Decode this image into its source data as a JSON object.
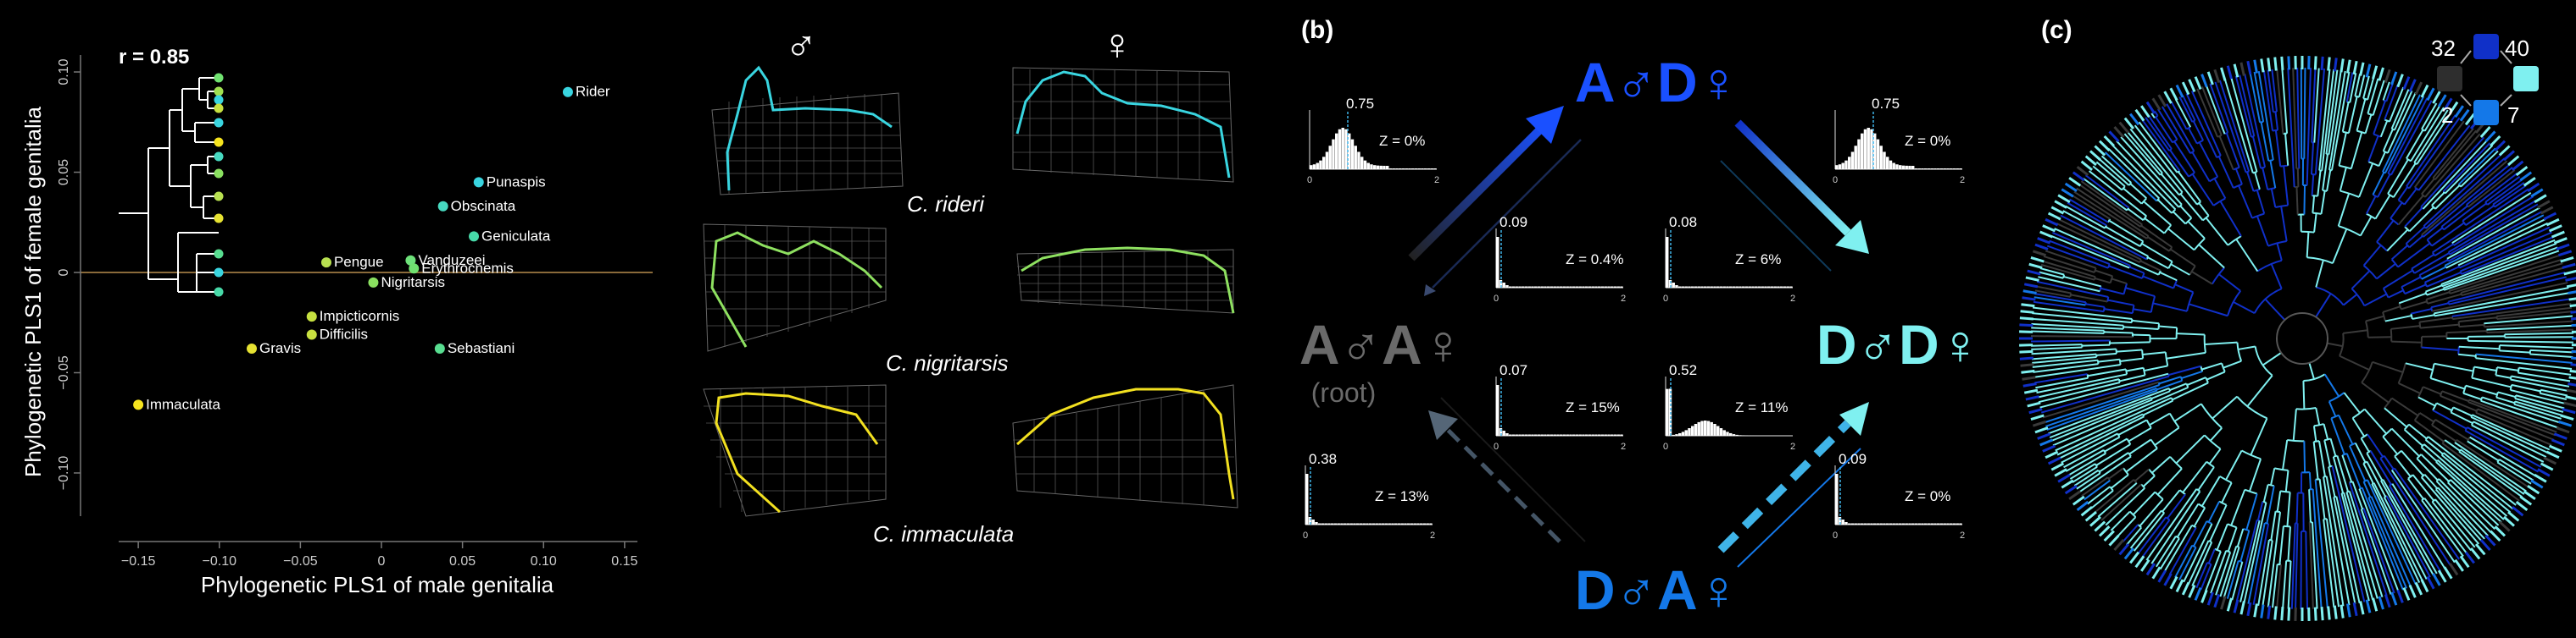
{
  "panel_a": {
    "r_label": "r = 0.85",
    "xlabel": "Phylogenetic PLS1 of male genitalia",
    "ylabel": "Phylogenetic PLS1 of female genitalia",
    "x_ticks": [
      "−0.15",
      "−0.10",
      "−0.05",
      "0",
      "0.05",
      "0.10",
      "0.15"
    ],
    "y_ticks": [
      "0.10",
      "0.05",
      "0",
      "−0.05",
      "−0.10"
    ],
    "male_symbol": "♂",
    "female_symbol": "♀",
    "species_labels": [
      "C. rideri",
      "C. nigritarsis",
      "C. immaculata"
    ]
  },
  "chart_data": {
    "type": "scatter",
    "xlabel": "Phylogenetic PLS1 of male genitalia",
    "ylabel": "Phylogenetic PLS1 of female genitalia",
    "xlim": [
      -0.17,
      0.17
    ],
    "ylim": [
      -0.11,
      0.11
    ],
    "annotation": "r = 0.85",
    "points": [
      {
        "label": "Rider",
        "x": 0.115,
        "y": 0.09,
        "color": "#39d5e0"
      },
      {
        "label": "Punaspis",
        "x": 0.06,
        "y": 0.045,
        "color": "#39d5e0"
      },
      {
        "label": "Obscinata",
        "x": 0.038,
        "y": 0.033,
        "color": "#47d9c0"
      },
      {
        "label": "Geniculata",
        "x": 0.057,
        "y": 0.018,
        "color": "#47d9a8"
      },
      {
        "label": "Vanduzeei",
        "x": 0.018,
        "y": 0.006,
        "color": "#6ee27a"
      },
      {
        "label": "Erythrocnemis",
        "x": 0.02,
        "y": 0.002,
        "color": "#70e270"
      },
      {
        "label": "Pengue",
        "x": -0.034,
        "y": 0.005,
        "color": "#b8e050"
      },
      {
        "label": "Nigritarsis",
        "x": -0.005,
        "y": -0.005,
        "color": "#8ae060"
      },
      {
        "label": "Impicticornis",
        "x": -0.043,
        "y": -0.022,
        "color": "#c6e040"
      },
      {
        "label": "Difficilis",
        "x": -0.043,
        "y": -0.031,
        "color": "#c8e040"
      },
      {
        "label": "Gravis",
        "x": -0.08,
        "y": -0.038,
        "color": "#e6e232"
      },
      {
        "label": "Sebastiani",
        "x": 0.036,
        "y": -0.038,
        "color": "#58dd90"
      },
      {
        "label": "Immaculata",
        "x": -0.15,
        "y": -0.066,
        "color": "#f6e41e"
      }
    ]
  },
  "panel_b": {
    "label": "(b)",
    "state_AA": "A♂A♀",
    "state_AA_sub": "(root)",
    "state_AD": "A♂D♀",
    "state_DD": "D♂D♀",
    "state_DA": "D♂A♀",
    "histograms": [
      {
        "peak_label": "0.75",
        "z_label": "Z = 0%"
      },
      {
        "peak_label": "0.75",
        "z_label": "Z = 0%"
      },
      {
        "peak_label": "0.09",
        "z_label": "Z = 0.4%"
      },
      {
        "peak_label": "0.08",
        "z_label": "Z = 6%"
      },
      {
        "peak_label": "0.07",
        "z_label": "Z = 15%"
      },
      {
        "peak_label": "0.52",
        "z_label": "Z = 11%"
      },
      {
        "peak_label": "0.38",
        "z_label": "Z = 13%"
      },
      {
        "peak_label": "0.09",
        "z_label": "Z = 0%"
      }
    ],
    "axis_zero": "0",
    "axis_two": "2"
  },
  "panel_c": {
    "label": "(c)",
    "legend_counts": [
      "32",
      "40",
      "2",
      "7"
    ],
    "colors": {
      "AA": "#3a3a3a",
      "AD": "#1030c8",
      "DD": "#7ff0f0",
      "DA": "#1478e8"
    }
  }
}
